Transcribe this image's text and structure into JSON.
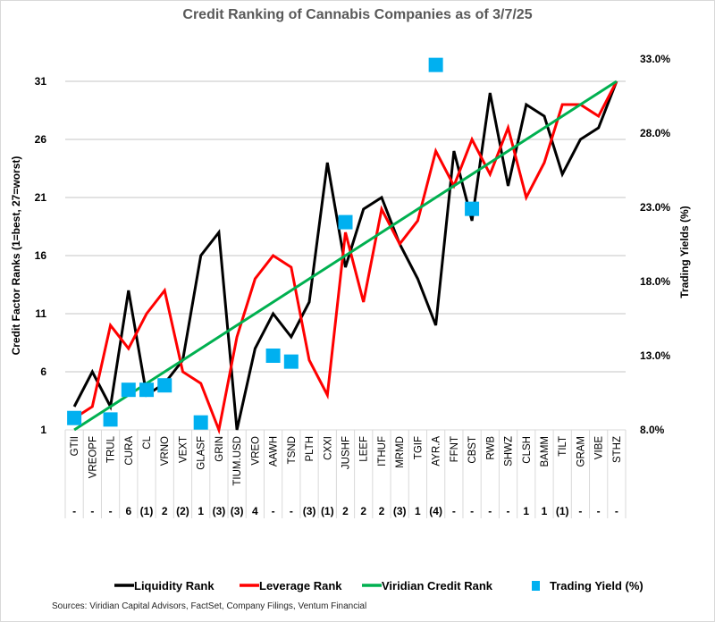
{
  "chart_data": {
    "type": "line",
    "title": "Credit Ranking of Cannabis Companies as of 3/7/25",
    "ylabel": "Credit Factor Ranks (1=best, 27=worst)",
    "y2label": "Trading Yields (%)",
    "xlabel": "",
    "ylim": [
      1,
      33
    ],
    "y2lim": [
      8.0,
      35.0
    ],
    "yticks": [
      "1",
      "6",
      "11",
      "16",
      "21",
      "26",
      "31"
    ],
    "ytick_values": [
      1,
      6,
      11,
      16,
      21,
      26,
      31
    ],
    "y2ticks": [
      "8.0%",
      "13.0%",
      "18.0%",
      "23.0%",
      "28.0%",
      "33.0%"
    ],
    "y2tick_values": [
      8,
      13,
      18,
      23,
      28,
      33
    ],
    "grid": true,
    "legend_position": "bottom",
    "categories": [
      "GTII",
      "VREOPF",
      "TRUL",
      "CURA",
      "CL",
      "VRNO",
      "VEXT",
      "GLASF",
      "GRIN",
      "TIUM.USD",
      "VREO",
      "AAWH",
      "TSND",
      "PLTH",
      "CXXI",
      "JUSHF",
      "LEEF",
      "ITHUF",
      "MRMD",
      "TGIF",
      "AYR.A",
      "FFNT",
      "CBST",
      "RWB",
      "SHWZ",
      "CLSH",
      "BAMM",
      "TILT",
      "GRAM",
      "VIBE",
      "STHZ"
    ],
    "rank_change": [
      "-",
      "-",
      "-",
      "6",
      "(1)",
      "2",
      "(2)",
      "1",
      "(3)",
      "(3)",
      "4",
      "-",
      "-",
      "(3)",
      "(1)",
      "2",
      "2",
      "2",
      "(3)",
      "1",
      "(4)",
      "-",
      "-",
      "-",
      "-",
      "1",
      "1",
      "(1)",
      "-",
      "-",
      "-"
    ],
    "series": [
      {
        "name": "Liquidity Rank",
        "type": "line",
        "axis": "left",
        "color": "#000000",
        "values": [
          3,
          6,
          3,
          13,
          4,
          5,
          7,
          16,
          18,
          1,
          8,
          11,
          9,
          12,
          24,
          15,
          20,
          21,
          17,
          14,
          10,
          25,
          19,
          30,
          22,
          29,
          28,
          23,
          26,
          27,
          31
        ]
      },
      {
        "name": "Leverage Rank",
        "type": "line",
        "axis": "left",
        "color": "#ff0000",
        "values": [
          2,
          3,
          10,
          8,
          11,
          13,
          6,
          5,
          1,
          9,
          14,
          16,
          15,
          7,
          4,
          18,
          12,
          20,
          17,
          19,
          25,
          22,
          26,
          23,
          27,
          21,
          24,
          29,
          29,
          28,
          31
        ]
      },
      {
        "name": "Viridian Credit Rank",
        "type": "line",
        "axis": "left",
        "color": "#00b050",
        "values": [
          1,
          2,
          3,
          4,
          5,
          6,
          7,
          8,
          9,
          10,
          11,
          12,
          13,
          14,
          15,
          16,
          17,
          18,
          19,
          20,
          21,
          22,
          23,
          24,
          25,
          26,
          27,
          28,
          29,
          30,
          31
        ]
      },
      {
        "name": "Trading Yield (%)",
        "type": "scatter",
        "axis": "right",
        "color": "#00b0f0",
        "values": [
          8.8,
          null,
          8.7,
          10.7,
          10.7,
          11.0,
          null,
          8.5,
          null,
          null,
          null,
          13.0,
          12.6,
          null,
          null,
          22.0,
          null,
          null,
          null,
          null,
          32.6,
          null,
          22.9,
          null,
          null,
          null,
          null,
          null,
          null,
          null,
          null
        ]
      }
    ]
  },
  "legend": {
    "items": [
      {
        "label": "Liquidity Rank",
        "color": "#000000",
        "shape": "line"
      },
      {
        "label": "Leverage Rank",
        "color": "#ff0000",
        "shape": "line"
      },
      {
        "label": "Viridian Credit Rank",
        "color": "#00b050",
        "shape": "line"
      },
      {
        "label": "Trading Yield (%)",
        "color": "#00b0f0",
        "shape": "square"
      }
    ]
  },
  "footer": {
    "sources": "Sources: Viridian Capital Advisors, FactSet, Company Filings, Ventum Financial"
  }
}
